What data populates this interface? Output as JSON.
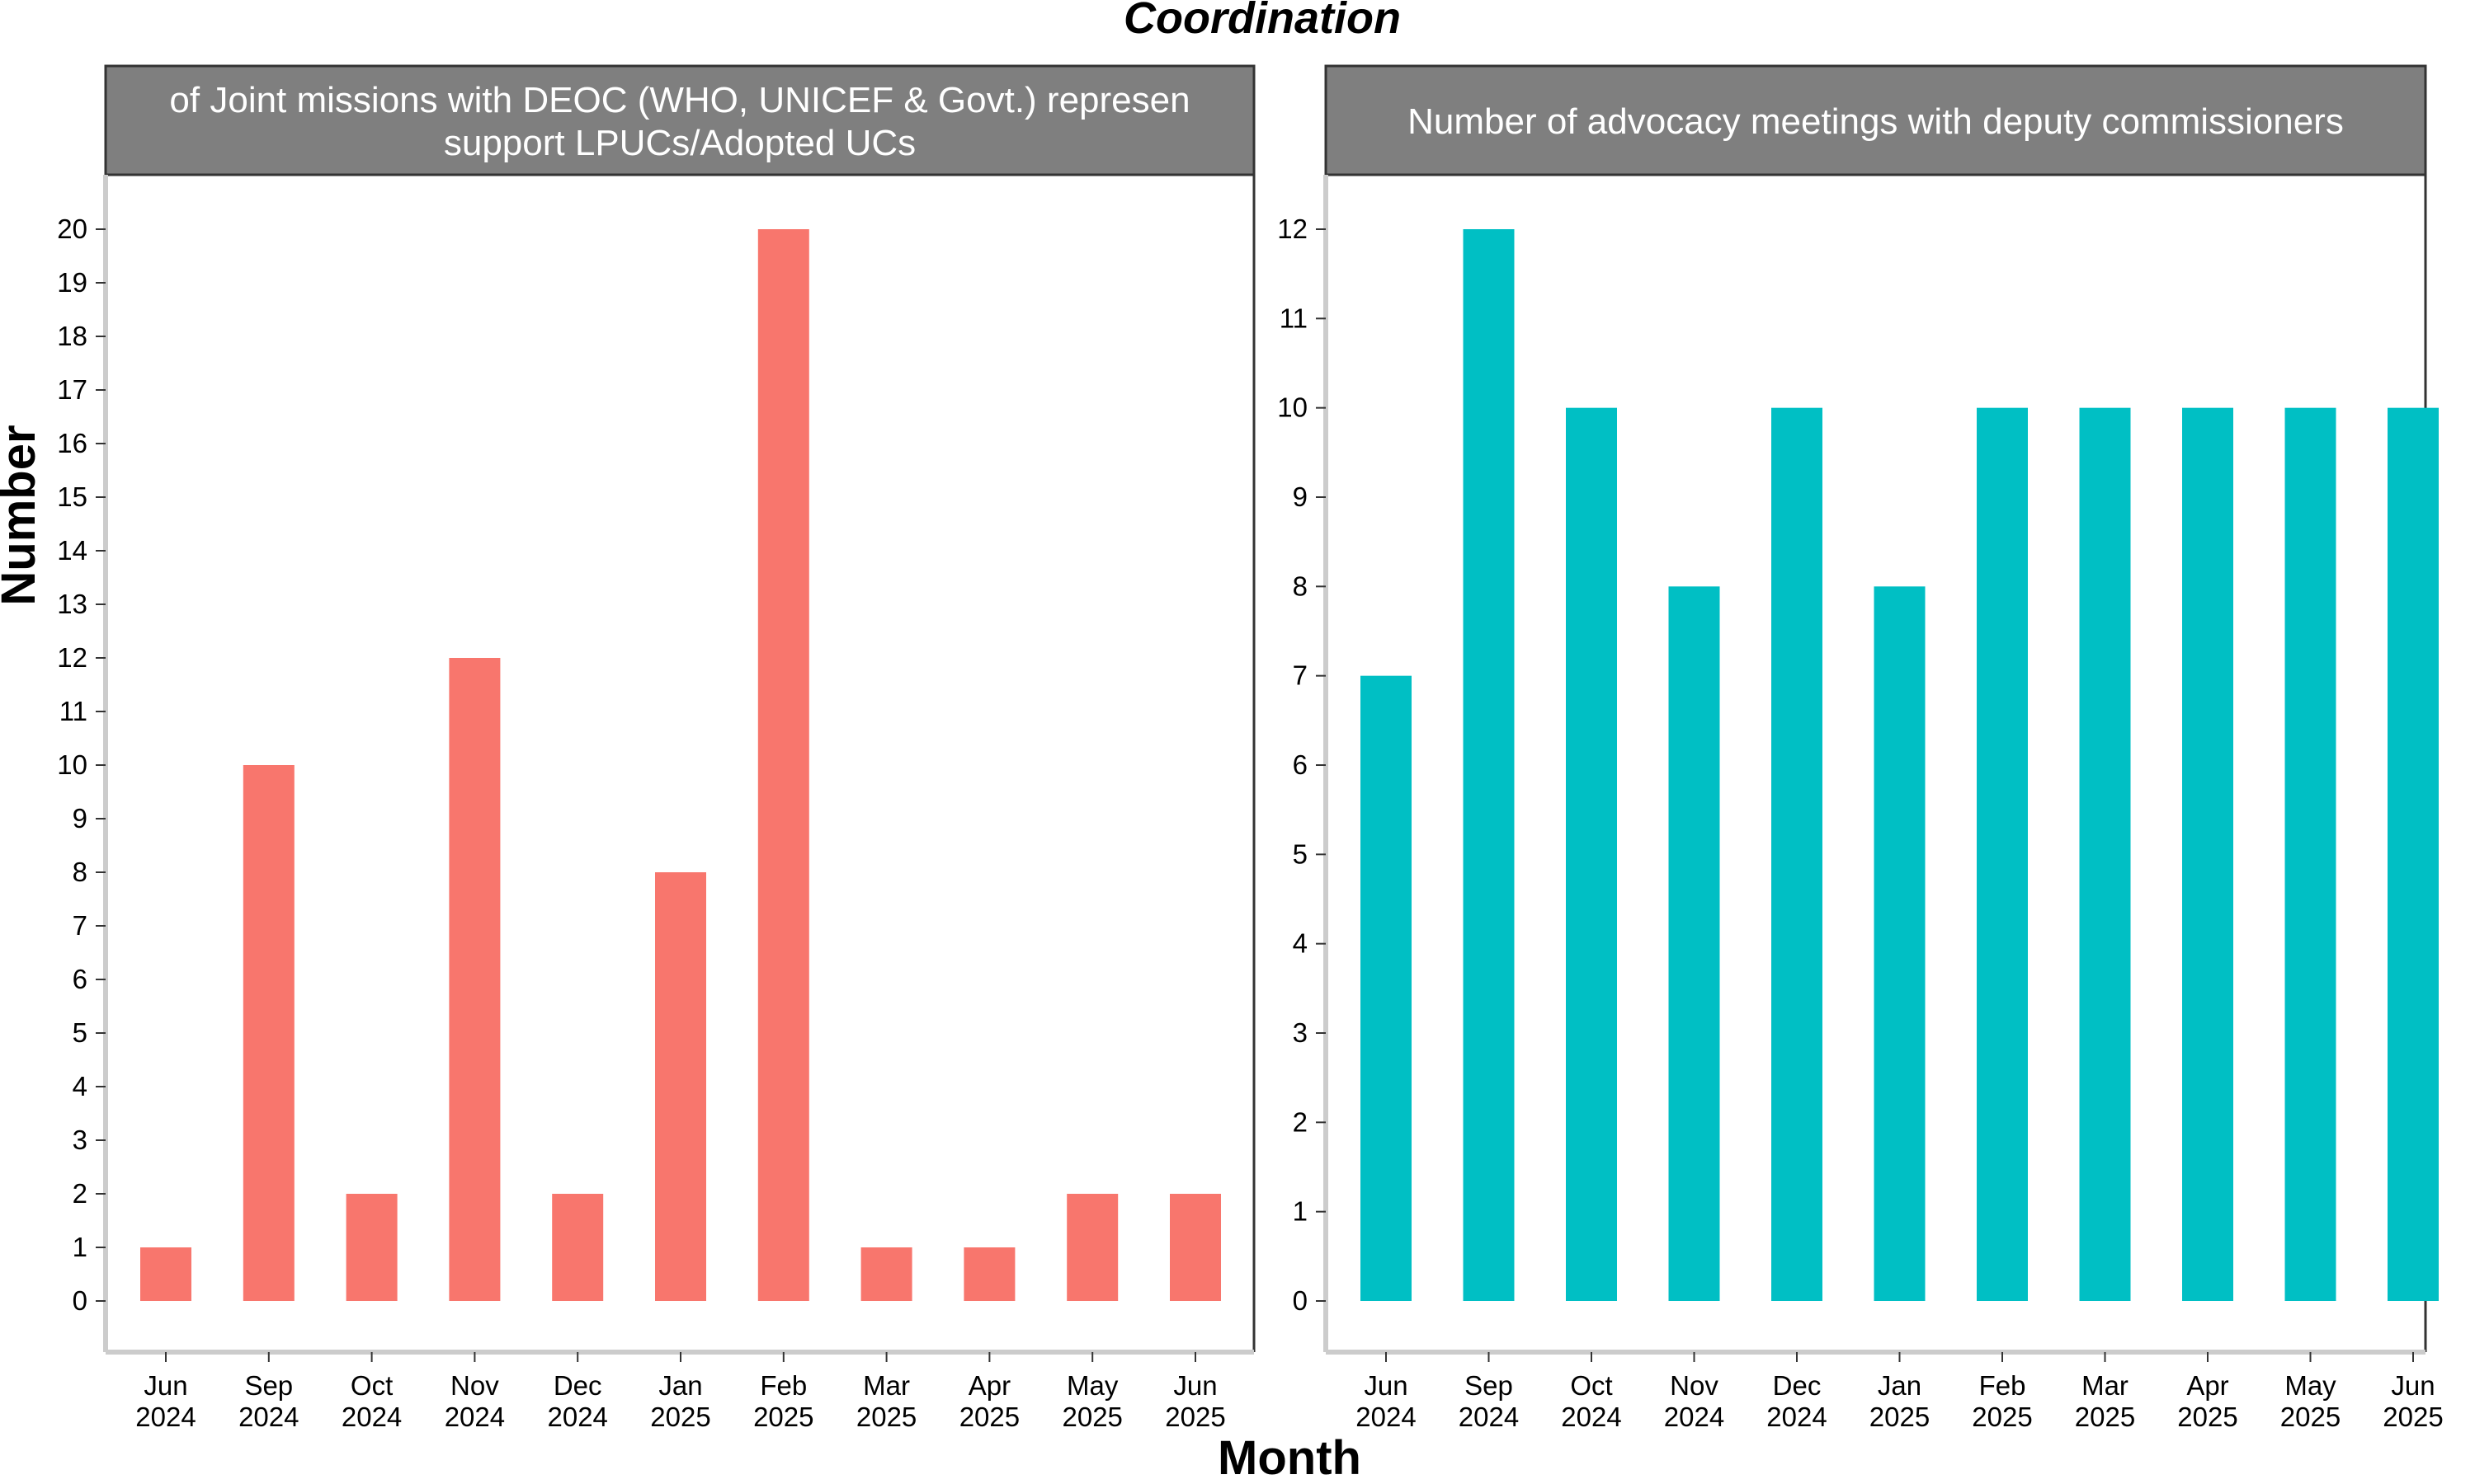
{
  "chart_data": {
    "type": "bar",
    "title": "Coordination",
    "xlabel": "Month",
    "ylabel": "Number",
    "categories": [
      [
        "Jun",
        "2024"
      ],
      [
        "Sep",
        "2024"
      ],
      [
        "Oct",
        "2024"
      ],
      [
        "Nov",
        "2024"
      ],
      [
        "Dec",
        "2024"
      ],
      [
        "Jan",
        "2025"
      ],
      [
        "Feb",
        "2025"
      ],
      [
        "Mar",
        "2025"
      ],
      [
        "Apr",
        "2025"
      ],
      [
        "May",
        "2025"
      ],
      [
        "Jun",
        "2025"
      ]
    ],
    "panels": [
      {
        "strip_lines": [
          "of Joint missions with DEOC (WHO, UNICEF & Govt.) represen",
          "support LPUCs/Adopted UCs"
        ],
        "color": "#F8766D",
        "values": [
          1,
          10,
          2,
          12,
          2,
          8,
          20,
          1,
          1,
          2,
          2
        ],
        "ylim": [
          0,
          20
        ],
        "yticks": [
          0,
          1,
          2,
          3,
          4,
          5,
          6,
          7,
          8,
          9,
          10,
          11,
          12,
          13,
          14,
          15,
          16,
          17,
          18,
          19,
          20
        ]
      },
      {
        "strip_lines": [
          "Number of advocacy meetings with deputy commissioners"
        ],
        "color": "#00BFC4",
        "values": [
          7,
          12,
          10,
          8,
          10,
          8,
          10,
          10,
          10,
          10,
          10
        ],
        "ylim": [
          0,
          12
        ],
        "yticks": [
          0,
          1,
          2,
          3,
          4,
          5,
          6,
          7,
          8,
          9,
          10,
          11,
          12
        ]
      }
    ],
    "grid": false,
    "legend": "none"
  }
}
